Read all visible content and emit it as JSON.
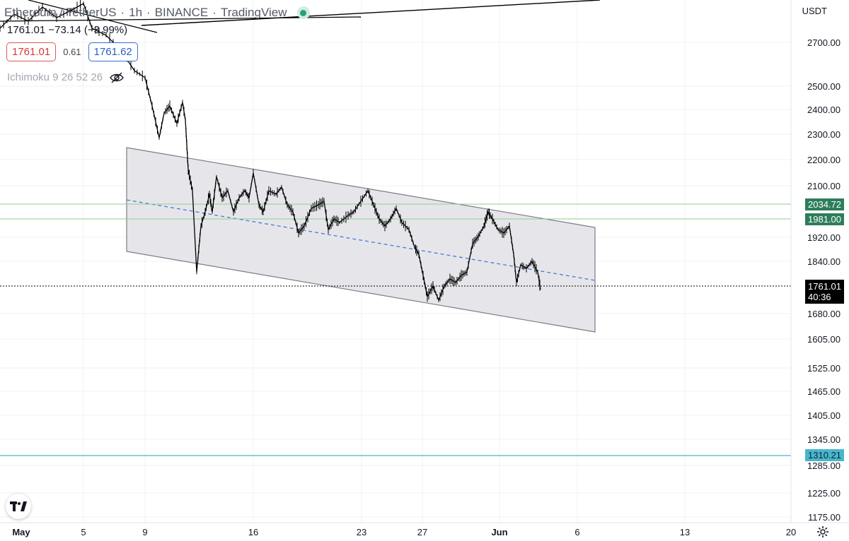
{
  "legend": {
    "symbol": "Ethereum / TetherUS",
    "interval": "1h",
    "exchange": "BINANCE",
    "platform": "TradingView",
    "ohlc_line": "1761.01  −73.14 (−3.99%)",
    "sell_price": "1761.01",
    "spread": "0.61",
    "buy_price": "1761.62",
    "indicator": "Ichimoku 9 26 52 26"
  },
  "price_axis": {
    "currency": "USDT",
    "ticks": [
      "2700.00",
      "2500.00",
      "2400.00",
      "2300.00",
      "2200.00",
      "2100.00",
      "1920.00",
      "1840.00",
      "1680.00",
      "1605.00",
      "1525.00",
      "1465.00",
      "1405.00",
      "1345.00",
      "1285.00",
      "1225.00",
      "1175.00"
    ],
    "tags": {
      "level_high": "2034.72",
      "level_mid": "1981.00",
      "current_price": "1761.01",
      "countdown": "40:36",
      "level_low": "1310.21"
    }
  },
  "time_axis": {
    "ticks": [
      "May",
      "5",
      "9",
      "16",
      "23",
      "27",
      "Jun",
      "6",
      "13",
      "20"
    ]
  },
  "colors": {
    "channel_fill": "#e6e6ea",
    "channel_border": "#7b7d86",
    "midline": "#4a78d6",
    "horizontal_green": "#8fcf8f",
    "horizontal_cyan": "#48b6cc",
    "price_line": "#000000"
  },
  "icons": {
    "live": "live-status-dot",
    "hide": "eye-slash-icon",
    "logo": "tradingview-logo-icon",
    "settings": "gear-icon"
  }
}
